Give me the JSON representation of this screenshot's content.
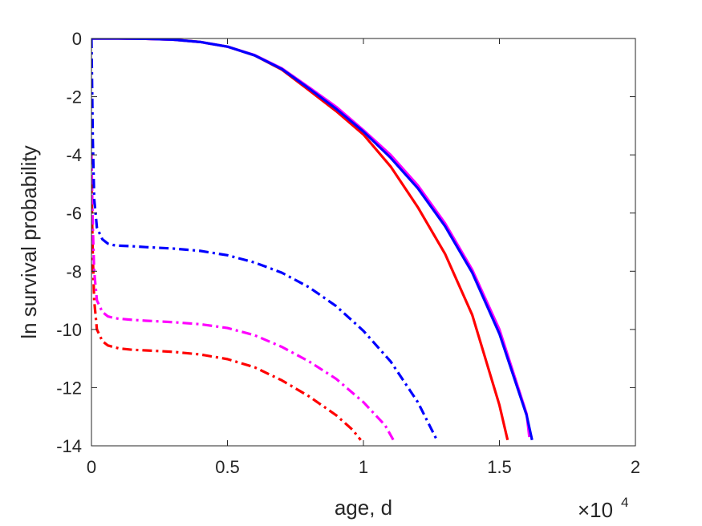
{
  "chart_data": {
    "type": "line",
    "title": "",
    "xlabel": "age, d",
    "ylabel": "ln survival probability",
    "x_multiplier": {
      "base": "×10",
      "exponent": "4"
    },
    "xlim": [
      0,
      20000
    ],
    "ylim": [
      -14,
      0
    ],
    "xticks": [
      0,
      5000,
      10000,
      15000,
      20000
    ],
    "xtick_labels": [
      "0",
      "0.5",
      "1",
      "1.5",
      "2"
    ],
    "yticks": [
      0,
      -2,
      -4,
      -6,
      -8,
      -10,
      -12,
      -14
    ],
    "ytick_labels": [
      "0",
      "-2",
      "-4",
      "-6",
      "-8",
      "-10",
      "-12",
      "-14"
    ],
    "grid": false,
    "legend": "none",
    "series": [
      {
        "color": "#ff0000",
        "style": "solid",
        "x": [
          0,
          1000,
          2000,
          3000,
          4000,
          5000,
          6000,
          7000,
          8000,
          9000,
          10000,
          11000,
          12000,
          13000,
          14000,
          15000,
          15300
        ],
        "y": [
          0,
          0,
          -0.01,
          -0.04,
          -0.12,
          -0.28,
          -0.58,
          -1.07,
          -1.78,
          -2.5,
          -3.3,
          -4.4,
          -5.8,
          -7.4,
          -9.5,
          -12.6,
          -13.8
        ]
      },
      {
        "color": "#ff00ff",
        "style": "solid",
        "x": [
          0,
          1000,
          2000,
          3000,
          4000,
          5000,
          6000,
          7000,
          8000,
          9000,
          10000,
          11000,
          12000,
          13000,
          14000,
          15000,
          16000,
          16100
        ],
        "y": [
          0,
          0,
          -0.01,
          -0.04,
          -0.12,
          -0.28,
          -0.57,
          -1.03,
          -1.68,
          -2.35,
          -3.15,
          -4.0,
          -5.05,
          -6.35,
          -7.95,
          -10.0,
          -12.9,
          -13.7
        ]
      },
      {
        "color": "#0000ff",
        "style": "solid",
        "x": [
          0,
          1000,
          2000,
          3000,
          4000,
          5000,
          6000,
          7000,
          8000,
          9000,
          10000,
          11000,
          12000,
          13000,
          14000,
          15000,
          16000,
          16200
        ],
        "y": [
          0,
          0,
          -0.01,
          -0.04,
          -0.12,
          -0.28,
          -0.58,
          -1.05,
          -1.72,
          -2.42,
          -3.2,
          -4.1,
          -5.15,
          -6.45,
          -8.05,
          -10.15,
          -12.95,
          -13.8
        ]
      },
      {
        "color": "#ff0000",
        "style": "dashdot",
        "x": [
          0,
          50,
          100,
          200,
          400,
          600,
          800,
          1000,
          1500,
          2000,
          3000,
          4000,
          5000,
          6000,
          7000,
          8000,
          9000,
          9600,
          9900
        ],
        "y": [
          -5.0,
          -7.5,
          -9.0,
          -10.0,
          -10.4,
          -10.55,
          -10.6,
          -10.65,
          -10.7,
          -10.72,
          -10.77,
          -10.86,
          -11.02,
          -11.3,
          -11.75,
          -12.3,
          -12.95,
          -13.45,
          -13.8
        ]
      },
      {
        "color": "#ff00ff",
        "style": "dashdot",
        "x": [
          0,
          50,
          100,
          200,
          400,
          600,
          800,
          1000,
          1500,
          2000,
          3000,
          4000,
          5000,
          6000,
          7000,
          8000,
          9000,
          10000,
          10800,
          11100
        ],
        "y": [
          -4.0,
          -6.5,
          -8.0,
          -9.0,
          -9.4,
          -9.55,
          -9.6,
          -9.63,
          -9.67,
          -9.7,
          -9.75,
          -9.82,
          -9.95,
          -10.2,
          -10.6,
          -11.1,
          -11.7,
          -12.5,
          -13.3,
          -13.8
        ]
      },
      {
        "color": "#0000ff",
        "style": "dashdot",
        "x": [
          0,
          50,
          100,
          200,
          400,
          600,
          800,
          1000,
          1500,
          2000,
          3000,
          4000,
          5000,
          6000,
          7000,
          8000,
          9000,
          10000,
          11000,
          12000,
          12700
        ],
        "y": [
          0,
          -3.5,
          -5.5,
          -6.5,
          -6.9,
          -7.05,
          -7.1,
          -7.12,
          -7.14,
          -7.17,
          -7.22,
          -7.3,
          -7.45,
          -7.7,
          -8.05,
          -8.55,
          -9.2,
          -10.05,
          -11.1,
          -12.5,
          -13.8
        ]
      }
    ]
  }
}
